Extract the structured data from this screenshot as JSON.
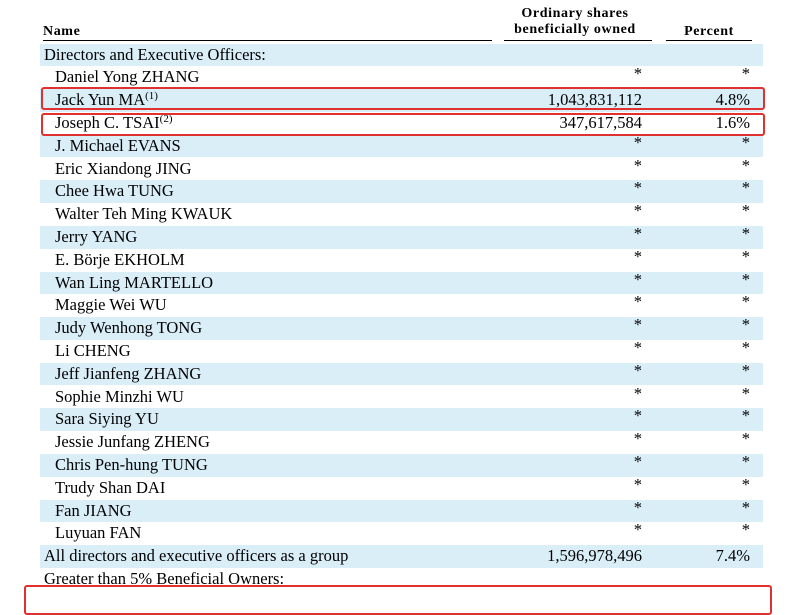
{
  "headers": {
    "name": "Name",
    "shares_line1": "Ordinary shares",
    "shares_line2": "beneficially owned",
    "percent": "Percent"
  },
  "rows": [
    {
      "name": "Directors and Executive Officers:",
      "shares": "",
      "pct": "",
      "type": "section"
    },
    {
      "name": "Daniel Yong ZHANG",
      "shares": "*",
      "pct": "*"
    },
    {
      "name": "Jack Yun MA",
      "footnote": "(1)",
      "shares": "1,043,831,112",
      "pct": "4.8%",
      "highlight": true
    },
    {
      "name": "Joseph C. TSAI",
      "footnote": "(2)",
      "shares": "347,617,584",
      "pct": "1.6%",
      "highlight": true
    },
    {
      "name": "J. Michael EVANS",
      "shares": "*",
      "pct": "*"
    },
    {
      "name": "Eric Xiandong JING",
      "shares": "*",
      "pct": "*"
    },
    {
      "name": "Chee Hwa TUNG",
      "shares": "*",
      "pct": "*"
    },
    {
      "name": "Walter Teh Ming KWAUK",
      "shares": "*",
      "pct": "*"
    },
    {
      "name": "Jerry YANG",
      "shares": "*",
      "pct": "*"
    },
    {
      "name": "E. Börje EKHOLM",
      "shares": "*",
      "pct": "*"
    },
    {
      "name": "Wan Ling MARTELLO",
      "shares": "*",
      "pct": "*"
    },
    {
      "name": "Maggie Wei WU",
      "shares": "*",
      "pct": "*"
    },
    {
      "name": "Judy Wenhong TONG",
      "shares": "*",
      "pct": "*"
    },
    {
      "name": "Li CHENG",
      "shares": "*",
      "pct": "*"
    },
    {
      "name": "Jeff Jianfeng ZHANG",
      "shares": "*",
      "pct": "*"
    },
    {
      "name": "Sophie Minzhi WU",
      "shares": "*",
      "pct": "*"
    },
    {
      "name": "Sara Siying YU",
      "shares": "*",
      "pct": "*"
    },
    {
      "name": "Jessie Junfang ZHENG",
      "shares": "*",
      "pct": "*"
    },
    {
      "name": "Chris Pen-hung TUNG",
      "shares": "*",
      "pct": "*"
    },
    {
      "name": "Trudy Shan DAI",
      "shares": "*",
      "pct": "*"
    },
    {
      "name": "Fan JIANG",
      "shares": "*",
      "pct": "*"
    },
    {
      "name": "Luyuan FAN",
      "shares": "*",
      "pct": "*"
    },
    {
      "name": "All directors and executive officers as a group",
      "shares": "1,596,978,496",
      "pct": "7.4%",
      "type": "section"
    },
    {
      "name": "Greater than 5% Beneficial Owners:",
      "shares": "",
      "pct": "",
      "type": "section"
    }
  ],
  "colors": {
    "row_shade": "#daeef8",
    "highlight_border": "#e03030"
  }
}
